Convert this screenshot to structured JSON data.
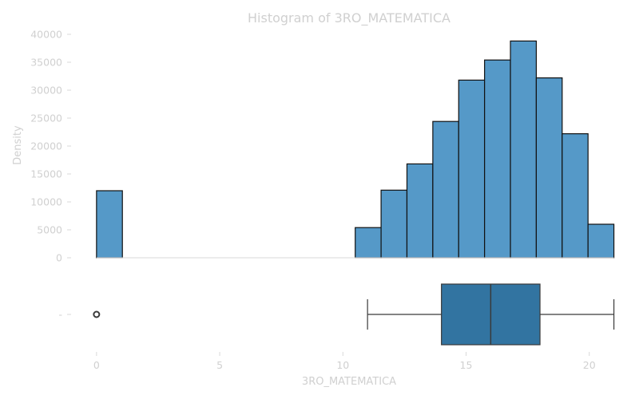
{
  "chart_data": [
    {
      "type": "bar",
      "title": "Histogram of 3RO_MATEMATICA",
      "ylabel": "Density",
      "xlim": [
        -1,
        21.5
      ],
      "ylim": [
        0,
        40000
      ],
      "yticks": [
        0,
        5000,
        10000,
        15000,
        20000,
        25000,
        30000,
        35000,
        40000
      ],
      "bins": [
        {
          "x0": 0.0,
          "x1": 1.05,
          "value": 12000
        },
        {
          "x0": 10.5,
          "x1": 11.55,
          "value": 5400
        },
        {
          "x0": 11.55,
          "x1": 12.6,
          "value": 12100
        },
        {
          "x0": 12.6,
          "x1": 13.65,
          "value": 16800
        },
        {
          "x0": 13.65,
          "x1": 14.7,
          "value": 24400
        },
        {
          "x0": 14.7,
          "x1": 15.75,
          "value": 31800
        },
        {
          "x0": 15.75,
          "x1": 16.8,
          "value": 35400
        },
        {
          "x0": 16.8,
          "x1": 17.85,
          "value": 38800
        },
        {
          "x0": 17.85,
          "x1": 18.9,
          "value": 32200
        },
        {
          "x0": 18.9,
          "x1": 19.95,
          "value": 22200
        },
        {
          "x0": 19.95,
          "x1": 21.0,
          "value": 6000
        }
      ],
      "grid": false
    },
    {
      "type": "box",
      "xlabel": "3RO_MATEMATICA",
      "xlim": [
        -1,
        21.5
      ],
      "xticks": [
        0,
        5,
        10,
        15,
        20
      ],
      "ytick_label": "-",
      "stats": {
        "whisker_low": 11,
        "q1": 14,
        "median": 16,
        "q3": 18,
        "whisker_high": 21,
        "outliers": [
          0
        ]
      },
      "color": "#3274a1"
    }
  ]
}
